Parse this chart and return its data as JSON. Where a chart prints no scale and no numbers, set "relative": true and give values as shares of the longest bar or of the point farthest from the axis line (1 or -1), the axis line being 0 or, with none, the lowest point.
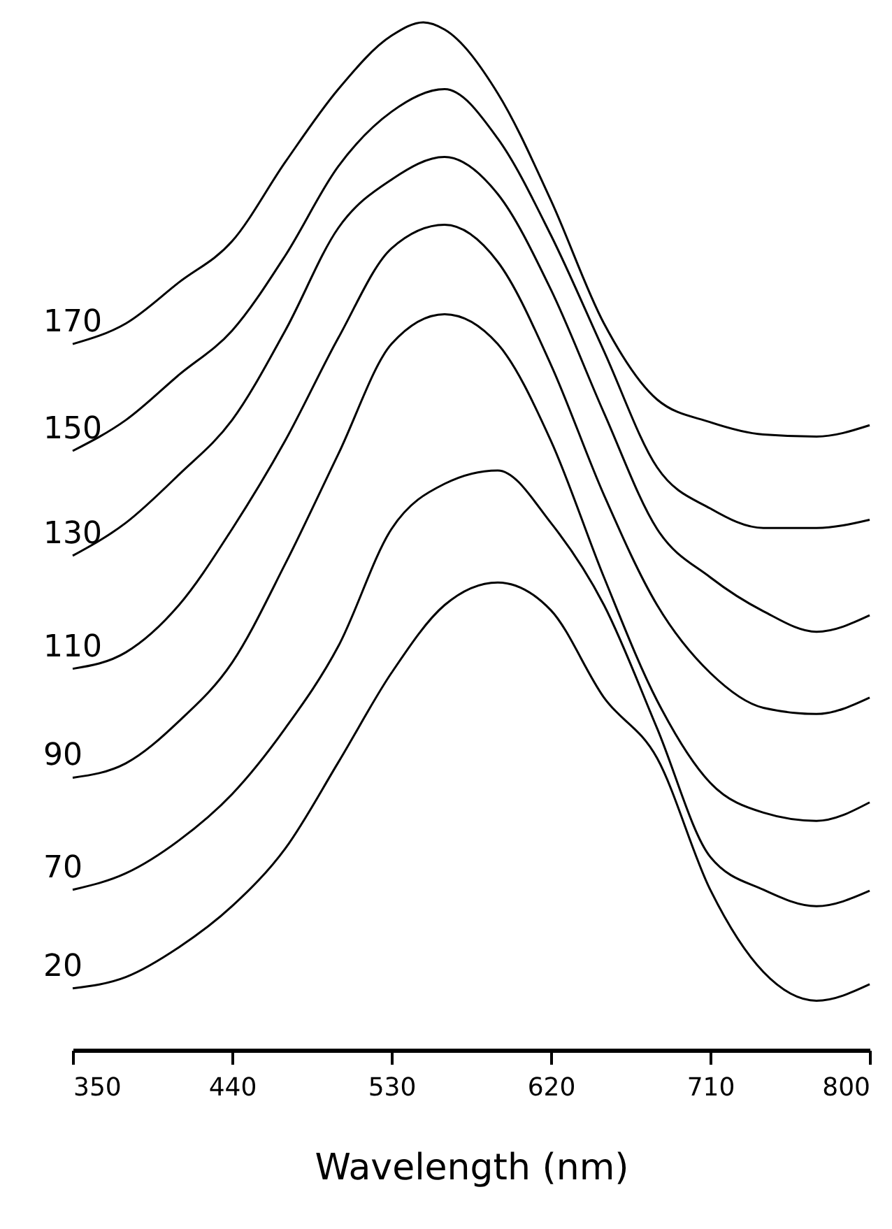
{
  "chart_data": {
    "type": "line",
    "relative": true,
    "xlabel": "Wavelength  (nm)",
    "x": [
      350,
      380,
      410,
      440,
      470,
      500,
      530,
      560,
      590,
      620,
      650,
      680,
      710,
      740,
      770,
      800
    ],
    "xlim": [
      350,
      800
    ],
    "xticks": [
      350,
      440,
      530,
      620,
      710,
      800
    ],
    "legend": false,
    "grid": false,
    "marker": "none",
    "line_style": "solid",
    "series": [
      {
        "name": "170",
        "color": "#000000",
        "x": [
          350,
          380,
          410,
          440,
          470,
          500,
          530,
          548,
          560,
          590,
          620,
          650,
          680,
          710,
          740,
          770,
          800
        ],
        "values": [
          0.687,
          0.707,
          0.747,
          0.787,
          0.864,
          0.935,
          0.987,
          1.0,
          0.993,
          0.931,
          0.827,
          0.707,
          0.633,
          0.611,
          0.599,
          0.597,
          0.608
        ]
      },
      {
        "name": "150",
        "color": "#000000",
        "values": [
          0.583,
          0.613,
          0.657,
          0.7,
          0.773,
          0.86,
          0.913,
          0.935,
          0.887,
          0.793,
          0.68,
          0.567,
          0.527,
          0.508,
          0.508,
          0.516
        ]
      },
      {
        "name": "130",
        "color": "#000000",
        "values": [
          0.481,
          0.513,
          0.56,
          0.613,
          0.7,
          0.8,
          0.847,
          0.869,
          0.833,
          0.74,
          0.62,
          0.507,
          0.46,
          0.427,
          0.407,
          0.423
        ]
      },
      {
        "name": "110",
        "color": "#000000",
        "values": [
          0.371,
          0.387,
          0.433,
          0.507,
          0.593,
          0.693,
          0.78,
          0.803,
          0.767,
          0.667,
          0.54,
          0.433,
          0.367,
          0.333,
          0.327,
          0.343
        ]
      },
      {
        "name": "90",
        "color": "#000000",
        "values": [
          0.265,
          0.279,
          0.32,
          0.377,
          0.473,
          0.58,
          0.687,
          0.716,
          0.687,
          0.593,
          0.46,
          0.34,
          0.26,
          0.231,
          0.223,
          0.241
        ]
      },
      {
        "name": "70",
        "color": "#000000",
        "values": [
          0.156,
          0.172,
          0.204,
          0.249,
          0.313,
          0.393,
          0.507,
          0.551,
          0.564,
          0.513,
          0.433,
          0.313,
          0.188,
          0.156,
          0.14,
          0.155
        ]
      },
      {
        "name": "20",
        "color": "#000000",
        "values": [
          0.06,
          0.071,
          0.1,
          0.14,
          0.196,
          0.28,
          0.367,
          0.433,
          0.455,
          0.428,
          0.343,
          0.284,
          0.156,
          0.076,
          0.048,
          0.064
        ]
      }
    ]
  }
}
